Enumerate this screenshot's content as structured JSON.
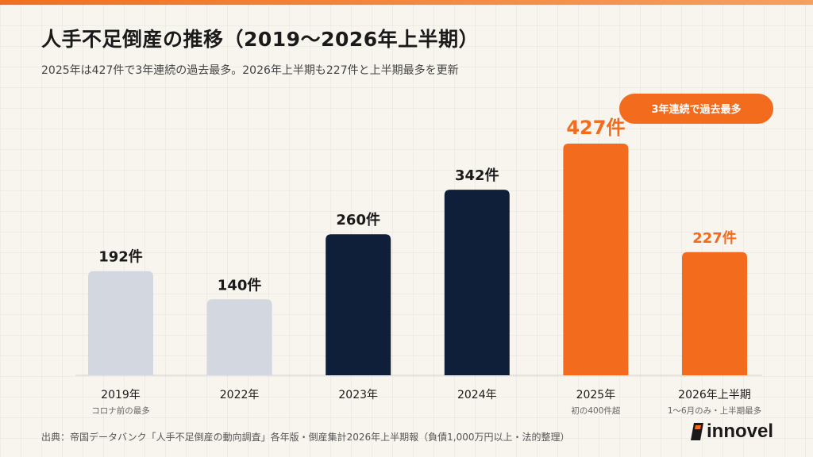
{
  "header": {
    "title": "人手不足倒産の推移（2019〜2026年上半期）",
    "subtitle": "2025年は427件で3年連続の過去最多。2026年上半期も227件と上半期最多を更新"
  },
  "chart_data": {
    "type": "bar",
    "categories": [
      "2019年",
      "2022年",
      "2023年",
      "2024年",
      "2025年",
      "2026年上半期"
    ],
    "values": [
      192,
      140,
      260,
      342,
      427,
      227
    ],
    "value_labels": [
      "192件",
      "140件",
      "260件",
      "342件",
      "427件",
      "227件"
    ],
    "category_notes": [
      "コロナ前の最多",
      "",
      "",
      "",
      "初の400件超",
      "1〜6月のみ・上半期最多"
    ],
    "bar_colors": [
      "#d3d7df",
      "#d3d7df",
      "#0f1f3a",
      "#0f1f3a",
      "#f36b1c",
      "#f36b1c"
    ],
    "label_colors": [
      "#1a1a1a",
      "#1a1a1a",
      "#1a1a1a",
      "#1a1a1a",
      "#f36b1c",
      "#f36b1c"
    ],
    "annotation": "3年連続で過去最多",
    "annotation_color": "#f36b1c",
    "ylim": [
      0,
      427
    ],
    "grid": false,
    "xlabel": "",
    "ylabel": ""
  },
  "footer": {
    "source": "出典：帝国データバンク「人手不足倒産の動向調査」各年版・倒産集計2026年上半期報（負債1,000万円以上・法的整理）",
    "logo_text": "innovel"
  },
  "colors": {
    "accent": "#f36b1c",
    "navy": "#0f1f3a",
    "gray_bar": "#d3d7df",
    "background": "#f8f4ee"
  }
}
